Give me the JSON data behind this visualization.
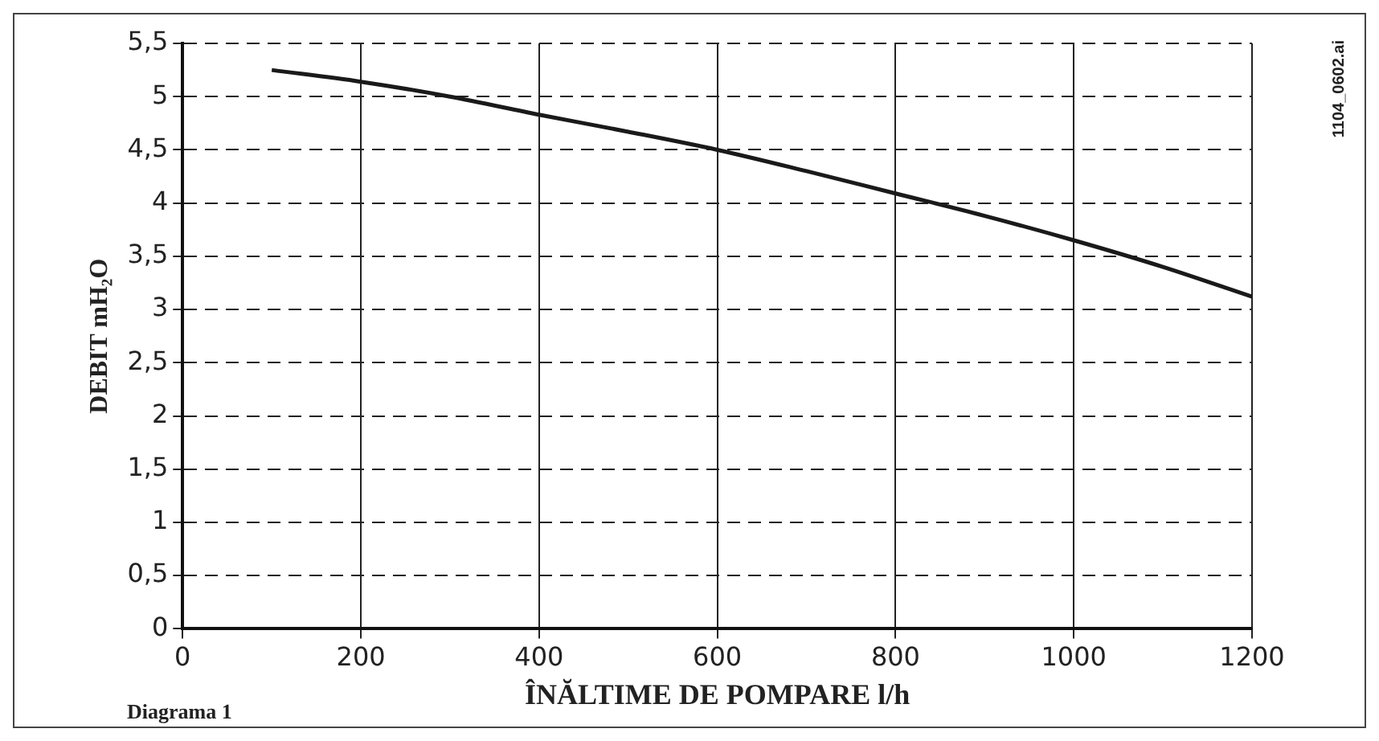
{
  "chart_data": {
    "type": "line",
    "xlabel": "ÎNĂLTIME DE POMPARE l/h",
    "ylabel": "DEBIT mH₂O",
    "annotations": [
      "Diagrama 1",
      "1104_0602.ai"
    ],
    "x": [
      100,
      200,
      300,
      400,
      500,
      600,
      700,
      800,
      900,
      1000,
      1100,
      1200
    ],
    "series": [
      {
        "color": "#1a1a1a",
        "values": [
          5.25,
          5.14,
          5.0,
          4.83,
          4.67,
          4.5,
          4.3,
          4.09,
          3.88,
          3.65,
          3.4,
          3.12
        ]
      }
    ],
    "xlim": [
      0,
      1200
    ],
    "xticks": [
      0,
      200,
      400,
      600,
      800,
      1000,
      1200
    ],
    "ylim": [
      0,
      5.5
    ],
    "yticks": [
      0,
      {
        "value": 0.5,
        "label": "0,5"
      },
      1,
      {
        "value": 1.5,
        "label": "1,5"
      },
      2,
      {
        "value": 2.5,
        "label": "2,5"
      },
      3,
      {
        "value": 3.5,
        "label": "3,5"
      },
      4,
      {
        "value": 4.5,
        "label": "4,5"
      },
      5,
      {
        "value": 5.5,
        "label": "5,5"
      }
    ],
    "grid": true,
    "legend": false,
    "marker": "none",
    "line_style": "solid"
  }
}
